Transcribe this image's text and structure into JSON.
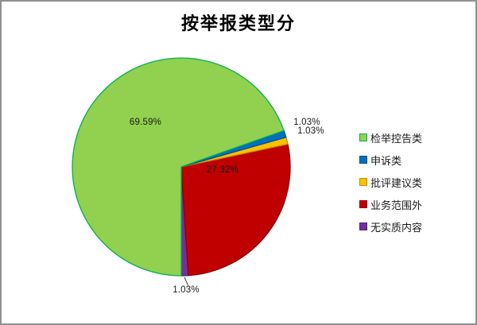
{
  "chart_data": {
    "type": "pie",
    "title": "按举报类型分",
    "legend_position": "right",
    "start_angle_deg": 180,
    "direction": "clockwise",
    "slices": [
      {
        "label": "检举控告类",
        "value": 69.59,
        "percent_label": "69.59%",
        "color": "#92D050",
        "border_color": "#00B050"
      },
      {
        "label": "申诉类",
        "value": 1.03,
        "percent_label": "1.03%",
        "color": "#0070C0",
        "border_color": "#00508C"
      },
      {
        "label": "批评建议类",
        "value": 1.03,
        "percent_label": "1.03%",
        "color": "#FFC000",
        "border_color": "#BF9000"
      },
      {
        "label": "业务范围外",
        "value": 27.32,
        "percent_label": "27.32%",
        "color": "#C00000",
        "border_color": "#8F0000"
      },
      {
        "label": "无实质内容",
        "value": 1.03,
        "percent_label": "1.03%",
        "color": "#7030A0",
        "border_color": "#552179"
      }
    ]
  },
  "frame": {
    "background": "#ffffff",
    "border_color": "#919191"
  }
}
